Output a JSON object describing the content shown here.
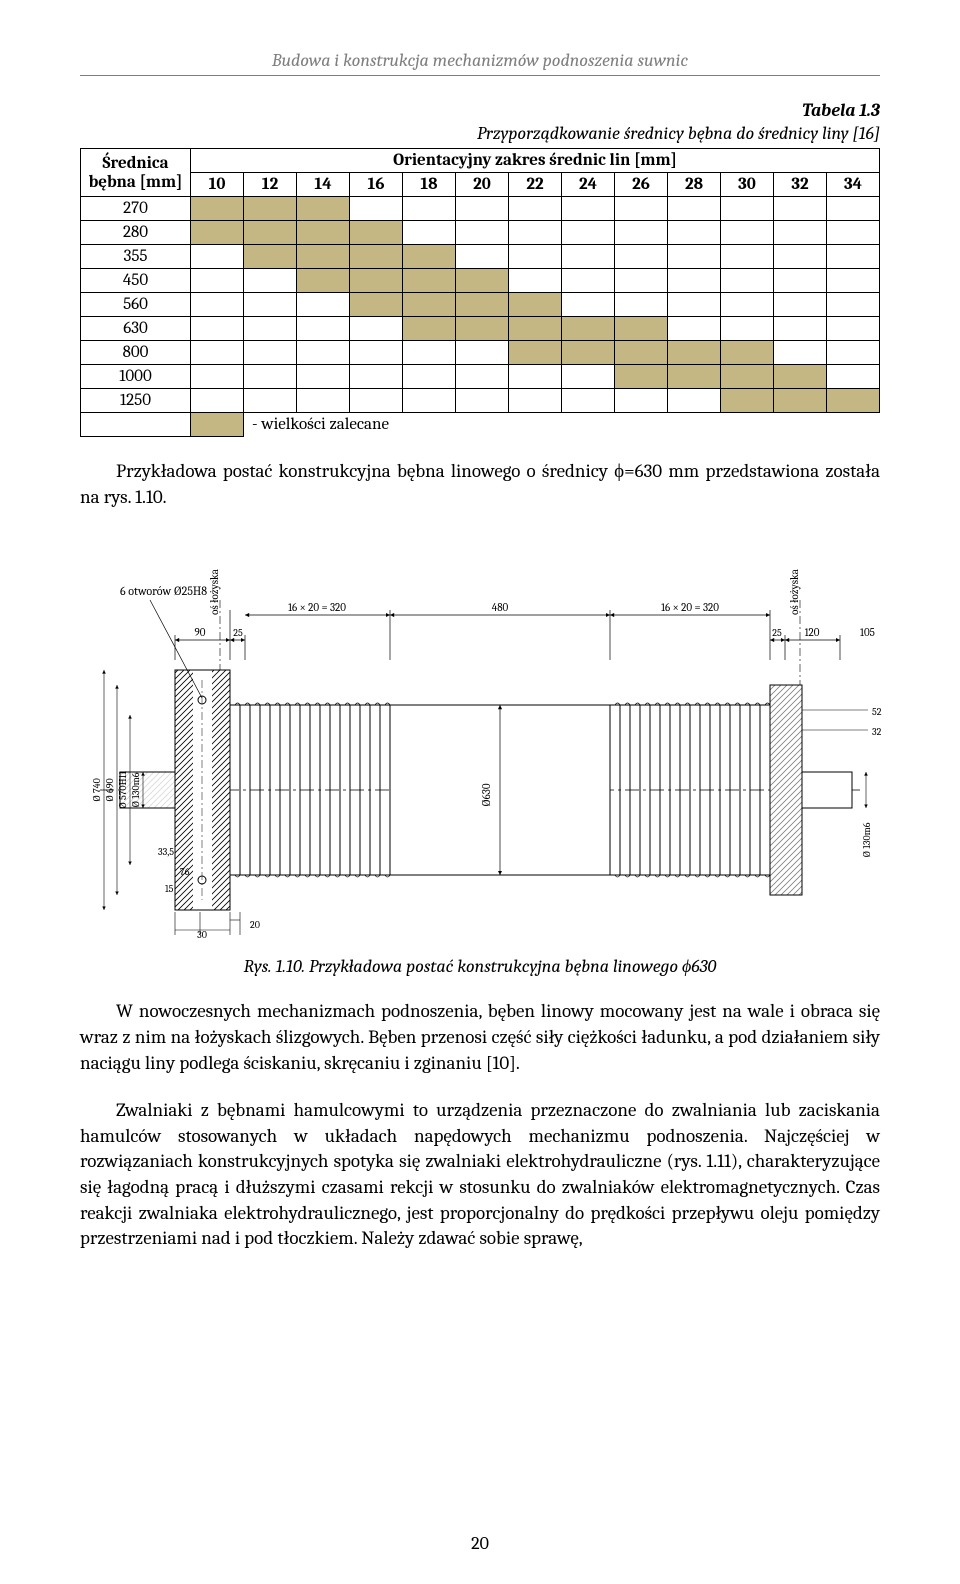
{
  "header": {
    "running": "Budowa i konstrukcja mechanizmów podnoszenia suwnic"
  },
  "table": {
    "caption_num": "Tabela 1.3",
    "caption_title": "Przyporządkowanie średnicy bębna do średnicy liny [16]",
    "rowhdr_line1": "Średnica",
    "rowhdr_line2": "bębna [mm]",
    "subhdr": "Orientacyjny zakres średnic lin [mm]",
    "cols": [
      "10",
      "12",
      "14",
      "16",
      "18",
      "20",
      "22",
      "24",
      "26",
      "28",
      "30",
      "32",
      "34"
    ],
    "rows": [
      {
        "label": "270",
        "on": [
          1,
          1,
          1,
          0,
          0,
          0,
          0,
          0,
          0,
          0,
          0,
          0,
          0
        ]
      },
      {
        "label": "280",
        "on": [
          1,
          1,
          1,
          1,
          0,
          0,
          0,
          0,
          0,
          0,
          0,
          0,
          0
        ]
      },
      {
        "label": "355",
        "on": [
          0,
          1,
          1,
          1,
          1,
          0,
          0,
          0,
          0,
          0,
          0,
          0,
          0
        ]
      },
      {
        "label": "450",
        "on": [
          0,
          0,
          1,
          1,
          1,
          1,
          0,
          0,
          0,
          0,
          0,
          0,
          0
        ]
      },
      {
        "label": "560",
        "on": [
          0,
          0,
          0,
          1,
          1,
          1,
          1,
          0,
          0,
          0,
          0,
          0,
          0
        ]
      },
      {
        "label": "630",
        "on": [
          0,
          0,
          0,
          0,
          1,
          1,
          1,
          1,
          1,
          0,
          0,
          0,
          0
        ]
      },
      {
        "label": "800",
        "on": [
          0,
          0,
          0,
          0,
          0,
          0,
          1,
          1,
          1,
          1,
          1,
          0,
          0
        ]
      },
      {
        "label": "1000",
        "on": [
          0,
          0,
          0,
          0,
          0,
          0,
          0,
          0,
          1,
          1,
          1,
          1,
          0
        ]
      },
      {
        "label": "1250",
        "on": [
          0,
          0,
          0,
          0,
          0,
          0,
          0,
          0,
          0,
          0,
          1,
          1,
          1
        ]
      }
    ],
    "legend": "- wielkości zalecane"
  },
  "text": {
    "p1": "Przykładowa postać konstrukcyjna bębna linowego o średnicy ϕ=630 mm przedstawiona została na rys. 1.10.",
    "fig_caption": "Rys. 1.10. Przykładowa postać konstrukcyjna bębna linowego ϕ630",
    "p2": "W nowoczesnych mechanizmach podnoszenia, bęben linowy mocowany jest na wale i obraca się wraz z nim na łożyskach ślizgowych. Bęben przenosi część siły ciężkości ładunku, a pod działaniem siły naciągu liny podlega ściskaniu, skręcaniu i zginaniu [10].",
    "p3": "Zwalniaki z bębnami hamulcowymi to urządzenia przeznaczone do zwalniania lub zaciskania hamulców stosowanych w układach napędowych mechanizmu podnoszenia. Najczęściej w rozwiązaniach konstrukcyjnych spotyka się zwalniaki elektrohydrauliczne (rys. 1.11), charakteryzujące się łagodną pracą i dłuższymi czasami rekcji w stosunku do zwalniaków elektromagnetycznych. Czas reakcji zwalniaka elektrohydraulicznego, jest proporcjonalny do prędkości przepływu oleju pomiędzy przestrzeniami nad i pod tłoczkiem. Należy zdawać sobie sprawę,"
  },
  "figure": {
    "labels": {
      "holes": "6 otworów Ø25H8",
      "bearing_axis": "oś łożyska",
      "dim_groove_left": "16 × 20 = 320",
      "dim_center": "480",
      "dim_groove_right": "16 × 20 = 320",
      "dim_90": "90",
      "dim_25l": "25",
      "dim_25r": "25",
      "dim_120": "120",
      "dim_105": "105",
      "dim_52": "52",
      "dim_32": "32",
      "dim_30": "30",
      "dim_20": "20",
      "dim_335": "33,5",
      "dim_76": "76",
      "dim_15": "15",
      "dia_740": "Ø 740",
      "dia_690": "Ø 690",
      "dia_570": "Ø 570H11",
      "dia_130l": "Ø 130m6",
      "dia_630": "Ø630",
      "dia_130r": "Ø 130m6"
    },
    "colors": {
      "line": "#000000",
      "fill": "#ffffff",
      "hatch": "#000000"
    }
  },
  "page_number": "20"
}
